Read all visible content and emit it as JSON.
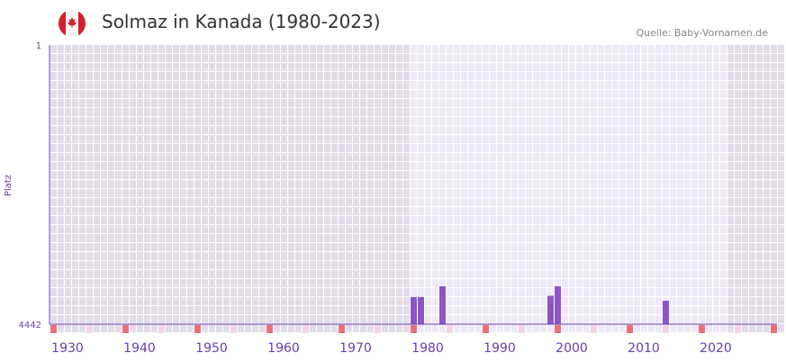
{
  "header": {
    "title": "Solmaz in Kanada (1980-2023)",
    "source": "Quelle: Baby-Vornamen.de",
    "flag_icon": "canada-flag-icon"
  },
  "chart_data": {
    "type": "bar",
    "title": "Solmaz in Kanada (1980-2023)",
    "ylabel": "Platz",
    "xlabel": "",
    "ylim": [
      4442,
      1
    ],
    "y_ticks": [
      "1",
      "4442"
    ],
    "xlim": [
      1928,
      2029
    ],
    "x_ticks": [
      "1930",
      "1940",
      "1950",
      "1960",
      "1970",
      "1980",
      "1990",
      "2000",
      "2010",
      "2020"
    ],
    "data_range": [
      1978,
      2021
    ],
    "series": [
      {
        "name": "Platz",
        "x": [
          1978,
          1979,
          1982,
          1997,
          1998,
          2013
        ],
        "values": [
          4010,
          4010,
          3840,
          3990,
          3840,
          4070
        ]
      }
    ],
    "colors": {
      "bar": "#8b55c8",
      "axis": "#6a3db0",
      "bg_out": "#e2dcea",
      "bg_in": "#eee9f8",
      "decade": "#e8707a",
      "half": "#f3d6df"
    }
  }
}
